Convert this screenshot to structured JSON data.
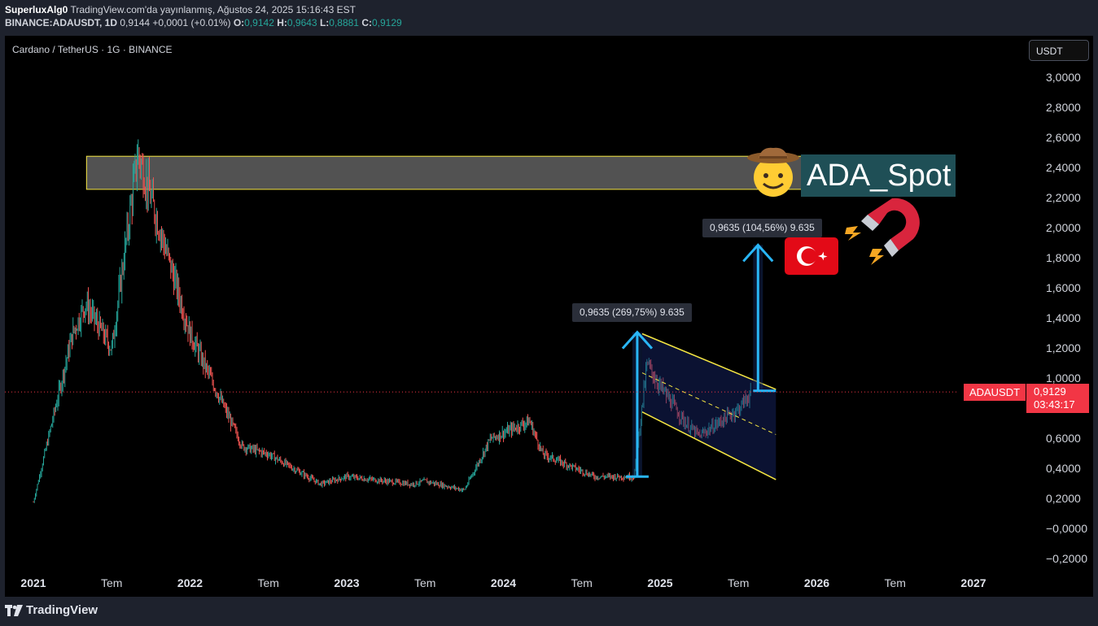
{
  "header": {
    "line1": {
      "author": "SuperluxAlg0",
      "published": "TradingView.com'da yayınlanmış, Ağustos 24, 2025 15:16:43 EST"
    },
    "line2": {
      "symbol": "BINANCE:ADAUSDT, 1D",
      "last": "0,9144",
      "change": "+0,0001 (+0.01%)",
      "o_label": "O:",
      "o": "0,9142",
      "h_label": "H:",
      "h": "0,9643",
      "l_label": "L:",
      "l": "0,8881",
      "c_label": "C:",
      "c": "0,9129"
    }
  },
  "chart_title": "Cardano / TetherUS · 1G · BINANCE",
  "currency": "USDT",
  "price_axis": {
    "labels": [
      "3,0000",
      "2,8000",
      "2,6000",
      "2,4000",
      "2,2000",
      "2,0000",
      "1,8000",
      "1,6000",
      "1,4000",
      "1,2000",
      "1,0000",
      "0,6000",
      "0,4000",
      "0,2000",
      "−0,0000",
      "−0,2000"
    ]
  },
  "time_axis": {
    "labels": [
      {
        "text": "2021",
        "year": true
      },
      {
        "text": "Tem",
        "year": false
      },
      {
        "text": "2022",
        "year": true
      },
      {
        "text": "Tem",
        "year": false
      },
      {
        "text": "2023",
        "year": true
      },
      {
        "text": "Tem",
        "year": false
      },
      {
        "text": "2024",
        "year": true
      },
      {
        "text": "Tem",
        "year": false
      },
      {
        "text": "2025",
        "year": true
      },
      {
        "text": "Tem",
        "year": false
      },
      {
        "text": "2026",
        "year": true
      },
      {
        "text": "Tem",
        "year": false
      },
      {
        "text": "2027",
        "year": true
      }
    ]
  },
  "last_price": {
    "symbol": "ADAUSDT",
    "value": "0,9129",
    "countdown": "03:43:17"
  },
  "annotations": {
    "measure1": "0,9635 (269,75%) 9.635",
    "measure2": "0,9635 (104,56%) 9.635",
    "spot_label": "ADA_Spot"
  },
  "colors": {
    "up": "#26a69a",
    "down": "#ef5350",
    "zone_border": "#f5e642",
    "arrow": "#29b6f6",
    "last_price": "#f23645"
  },
  "chart_data": {
    "type": "candlestick",
    "title": "Cardano / TetherUS · 1G · BINANCE",
    "y_unit": "USDT",
    "x": [
      "2021-01",
      "2021-04",
      "2021-05",
      "2021-07",
      "2021-09",
      "2021-11",
      "2022-01",
      "2022-05",
      "2022-07",
      "2022-11",
      "2023-01",
      "2023-06",
      "2023-07",
      "2023-10",
      "2023-12",
      "2024-03",
      "2024-04",
      "2024-08",
      "2024-11",
      "2024-12",
      "2025-01",
      "2025-03",
      "2025-04",
      "2025-07",
      "2025-08"
    ],
    "close": [
      0.18,
      1.3,
      1.5,
      1.2,
      2.5,
      1.9,
      1.3,
      0.55,
      0.5,
      0.3,
      0.35,
      0.3,
      0.32,
      0.26,
      0.6,
      0.72,
      0.5,
      0.35,
      0.35,
      1.1,
      0.95,
      0.7,
      0.62,
      0.8,
      0.9129
    ],
    "ylim": [
      -0.25,
      3.15
    ],
    "zones": [
      {
        "type": "rectangle",
        "y_from": 2.26,
        "y_to": 2.48,
        "x_from": "2021-09",
        "x_to": "2025-12"
      }
    ],
    "channel": {
      "upper_start": 1.3,
      "upper_end": 0.93,
      "lower_start": 0.78,
      "lower_end": 0.33
    },
    "measures": [
      {
        "label": "0,9635 (269,75%) 9.635",
        "from": 0.35,
        "to": 1.31
      },
      {
        "label": "0,9635 (104,56%) 9.635",
        "from": 0.92,
        "to": 1.89
      }
    ]
  }
}
